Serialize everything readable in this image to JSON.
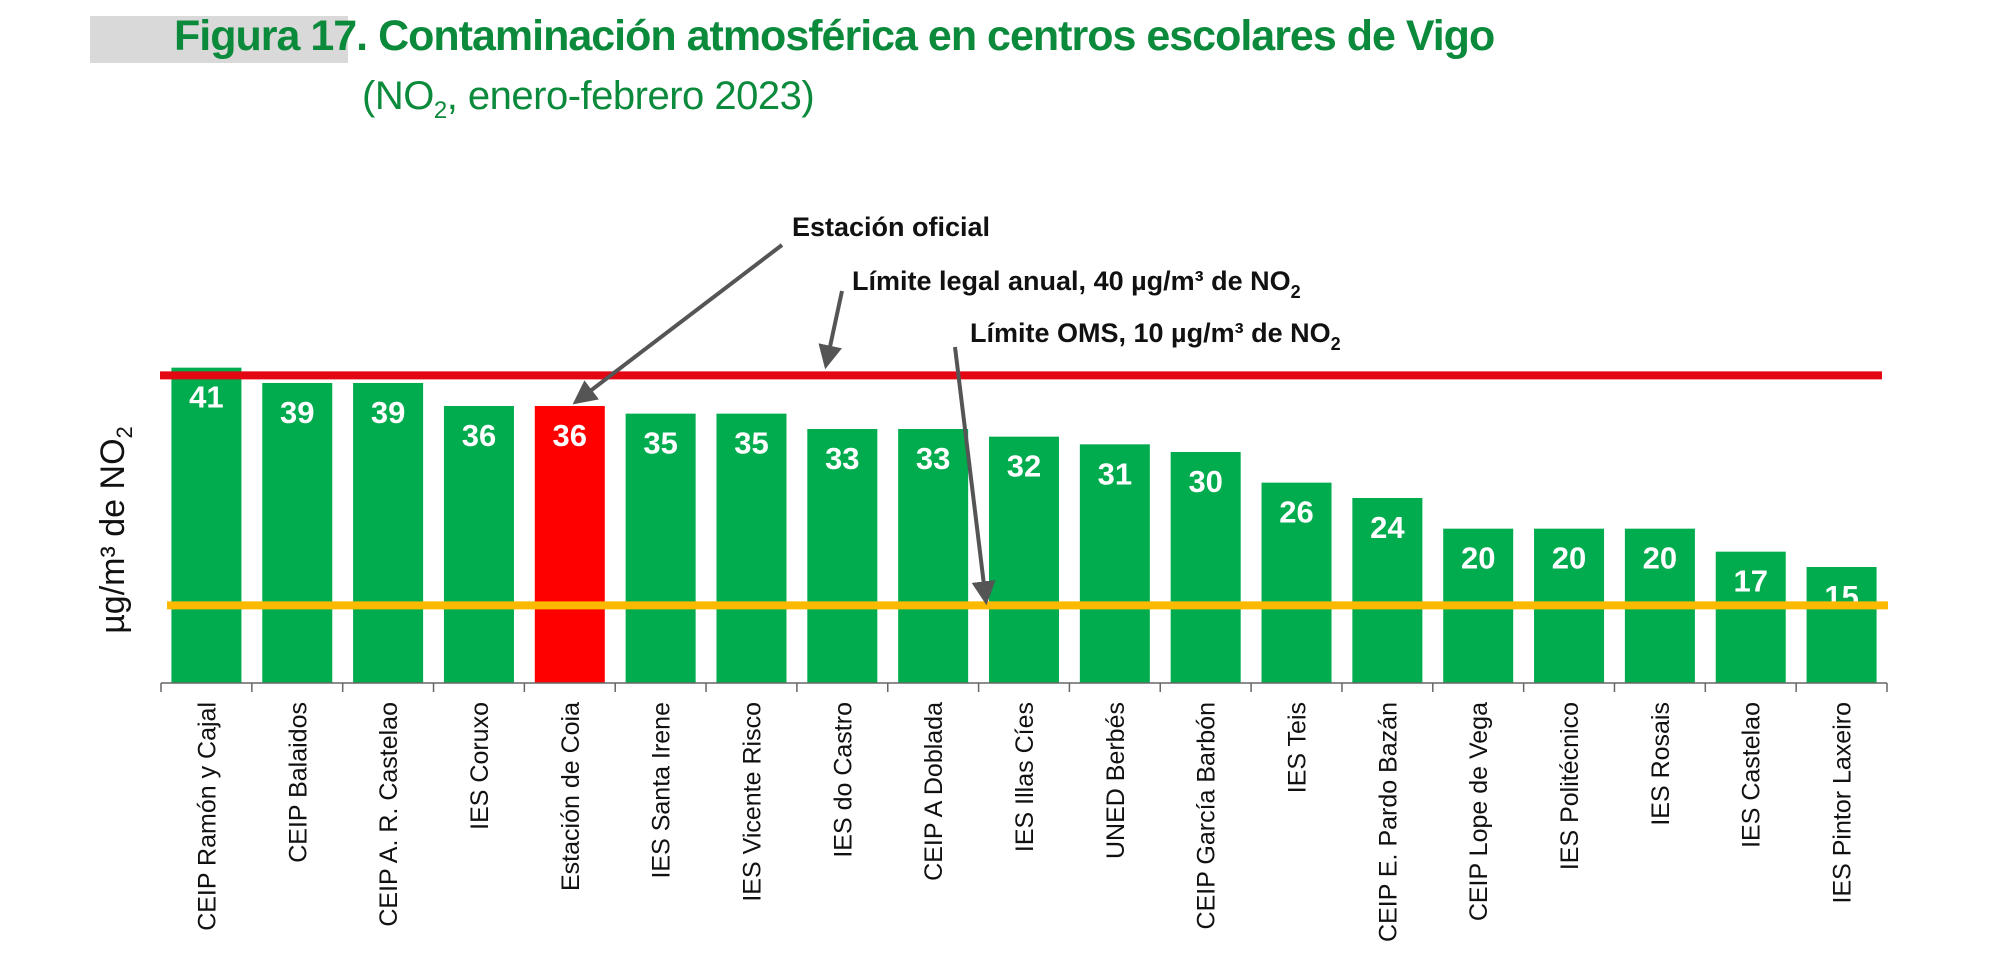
{
  "header": {
    "title": "Figura 17. Contaminación atmosférica en centros escolares de Vigo",
    "subtitle_pre": "(NO",
    "subtitle_sub": "2",
    "subtitle_post": ", enero-febrero 2023)"
  },
  "colors": {
    "bar": "#00ac4e",
    "highlight_bar": "#ff0000",
    "legal_limit_line": "#e30613",
    "who_limit_line": "#fbb900",
    "title": "#0b8a3c",
    "arrow": "#555555",
    "axis": "#666666"
  },
  "chart_data": {
    "type": "bar",
    "title": "Figura 17. Contaminación atmosférica en centros escolares de Vigo (NO2, enero-febrero 2023)",
    "xlabel": "",
    "ylabel": "µg/m³ de NO₂",
    "ylim": [
      0,
      42
    ],
    "grid": false,
    "categories": [
      "CEIP Ramón y Cajal",
      "CEIP Balaidos",
      "CEIP A. R. Castelao",
      "IES Coruxo",
      "Estación de Coia",
      "IES Santa Irene",
      "IES Vicente Risco",
      "IES do Castro",
      "CEIP A Doblada",
      "IES Illas Cíes",
      "UNED Berbés",
      "CEIP García Barbón",
      "IES Teis",
      "CEIP E. Pardo Bazán",
      "CEIP Lope de Vega",
      "IES Politécnico",
      "IES Rosais",
      "IES Castelao",
      "IES Pintor Laxeiro"
    ],
    "values": [
      41,
      39,
      39,
      36,
      36,
      35,
      35,
      33,
      33,
      32,
      31,
      30,
      26,
      24,
      20,
      20,
      20,
      17,
      15
    ],
    "data_labels": [
      "41",
      "39",
      "39",
      "36",
      "36",
      "35",
      "35",
      "33",
      "33",
      "32",
      "31",
      "30",
      "26",
      "24",
      "20",
      "20",
      "20",
      "17",
      "15"
    ],
    "highlight_category": "Estación de Coia",
    "reference_lines": [
      {
        "name": "Límite legal anual",
        "value": 40,
        "color": "red"
      },
      {
        "name": "Límite OMS",
        "value": 10,
        "color": "orange"
      }
    ],
    "annotations": [
      {
        "text": "Estación oficial",
        "target": "Estación de Coia"
      },
      {
        "text_pre": "Límite legal anual, 40 µg/m³ de NO",
        "text_sub": "2",
        "target": "Límite legal anual"
      },
      {
        "text_pre": "Límite OMS, 10 µg/m³ de NO",
        "text_sub": "2",
        "target": "Límite OMS"
      }
    ],
    "ylabel_parts": {
      "pre": "µg/m³ de NO",
      "sub": "2"
    }
  }
}
